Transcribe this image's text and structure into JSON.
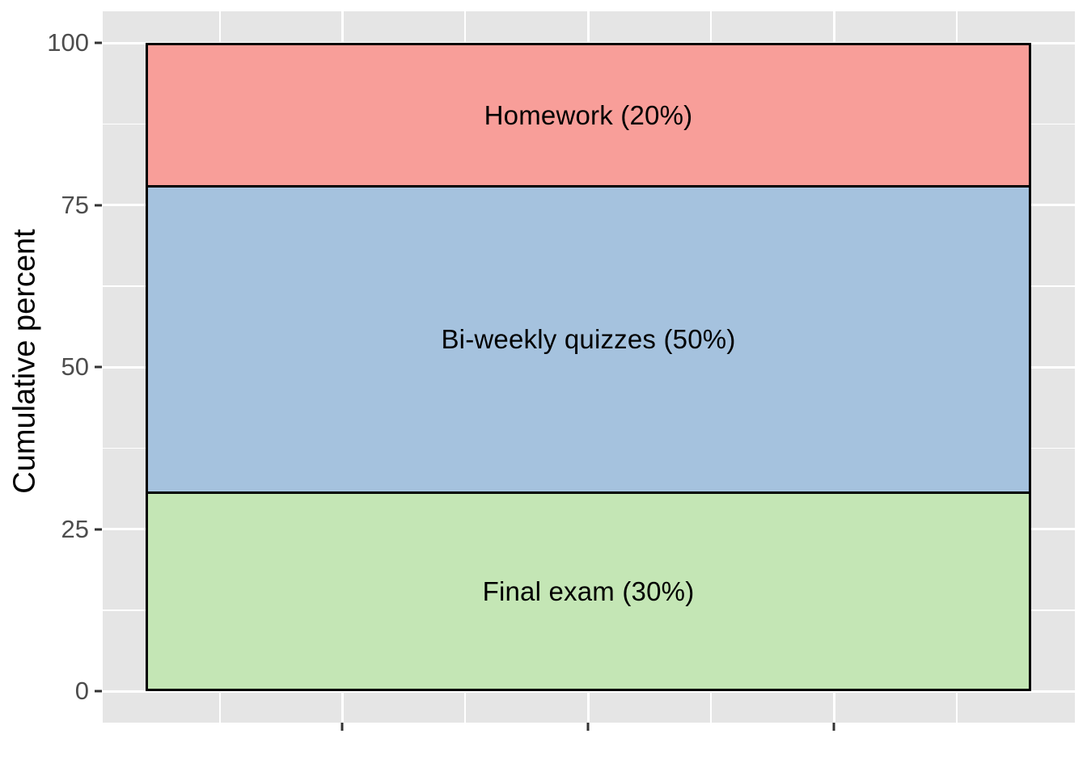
{
  "chart_data": {
    "type": "bar",
    "subtype": "stacked-single-column",
    "title": "",
    "ylabel": "Cumulative percent",
    "ylim": [
      0,
      100
    ],
    "grid": true,
    "legend": "none",
    "y_axis": {
      "major_ticks": [
        0,
        25,
        50,
        75,
        100
      ],
      "major_tick_labels": [
        "0",
        "25",
        "50",
        "75",
        "100"
      ],
      "minor_ticks": [
        12.5,
        37.5,
        62.5,
        87.5
      ]
    },
    "x_axis": {
      "label": "",
      "tick_labels": [],
      "unlabeled_tick_count": 3
    },
    "segments": [
      {
        "name": "homework",
        "label": "Homework (20%)",
        "value": 20,
        "from": 80,
        "to": 100,
        "color": "#F89E99"
      },
      {
        "name": "bi-weekly-quizzes",
        "label": "Bi-weekly quizzes (50%)",
        "value": 50,
        "from": 30,
        "to": 80,
        "color": "#A5C2DE"
      },
      {
        "name": "final-exam",
        "label": "Final exam (30%)",
        "value": 30,
        "from": 0,
        "to": 30,
        "color": "#C4E6B5"
      }
    ],
    "colors": {
      "panel_background": "#E5E5E5",
      "gridline": "#FFFFFF",
      "bar_border": "#000000",
      "tick_mark": "#333333",
      "axis_text": "#4D4D4D",
      "axis_title": "#000000",
      "segment_label_text": "#000000"
    }
  }
}
